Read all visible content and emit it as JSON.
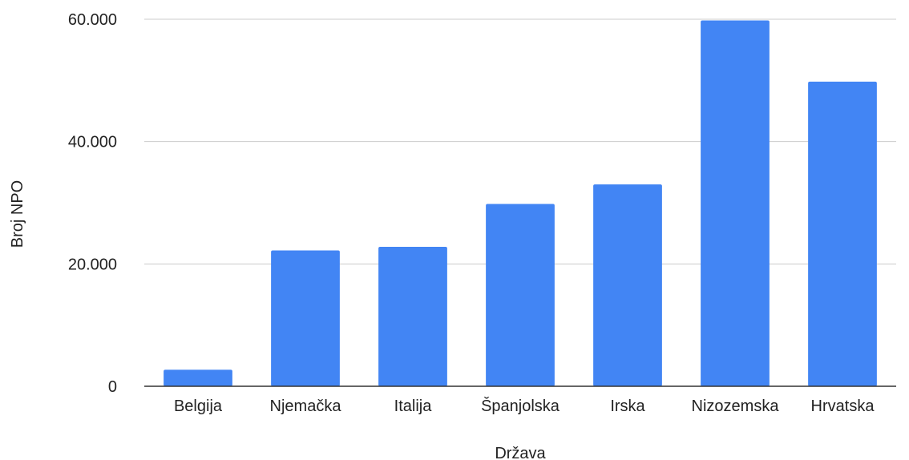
{
  "chart_data": {
    "type": "bar",
    "title": "",
    "xlabel": "Država",
    "ylabel": "Broj NPO",
    "categories": [
      "Belgija",
      "Njemačka",
      "Italija",
      "Španjolska",
      "Irska",
      "Nizozemska",
      "Hrvatska"
    ],
    "values": [
      2700,
      22200,
      22800,
      29800,
      33000,
      59800,
      49800
    ],
    "ylim": [
      0,
      60000
    ],
    "yticks": [
      0,
      20000,
      40000,
      60000
    ],
    "ytick_labels": [
      "0",
      "20.000",
      "40.000",
      "60.000"
    ],
    "grid": true,
    "legend": "none",
    "colors": {
      "bar": "#4285F4",
      "grid": "#cccccc",
      "axis": "#333333",
      "text": "#222222"
    }
  }
}
